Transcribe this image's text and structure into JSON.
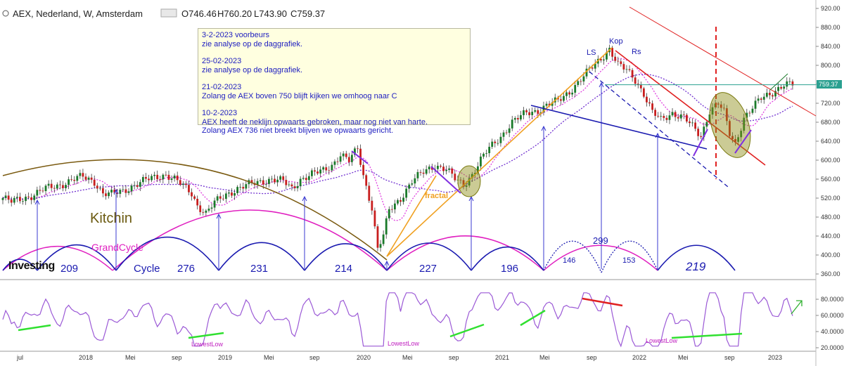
{
  "header": {
    "title": "AEX, Nederland, W, Amsterdam",
    "ohlc": {
      "open": "O746.46",
      "high": "H760.20",
      "low": "L743.90",
      "close": "C759.37"
    }
  },
  "logo": "Investing",
  "notes": [
    "3-2-2023 voorbeurs\nzie analyse op de daggrafiek.",
    "25-02-2023\nzie analyse op de daggrafiek.",
    "21-02-2023\nZolang de AEX boven 750 blijft kijken we omhoog naar C",
    "10-2-2023\nAEX heeft de neklijn opwaarts gebroken, maar nog niet van harte.\nZolang AEX 736 niet breekt  blijven we opwaarts gericht."
  ],
  "chart_data": [
    {
      "type": "candlestick",
      "title": "AEX, Nederland, W, Amsterdam",
      "ylim": [
        350,
        930
      ],
      "yticks": [
        "920.00",
        "880.00",
        "840.00",
        "800.00",
        "760.00",
        "720.00",
        "680.00",
        "640.00",
        "600.00",
        "560.00",
        "520.00",
        "480.00",
        "440.00",
        "400.00",
        "360.00"
      ],
      "last_price_label": "759.37",
      "x_ticks": [
        "jul",
        "2018",
        "Mei",
        "sep",
        "2019",
        "Mei",
        "sep",
        "2020",
        "Mei",
        "sep",
        "2021",
        "Mei",
        "sep",
        "2022",
        "Mei",
        "sep",
        "2023"
      ],
      "close_path": [
        [
          0,
          520
        ],
        [
          3,
          512
        ],
        [
          6,
          518
        ],
        [
          10,
          525
        ],
        [
          15,
          540
        ],
        [
          20,
          548
        ],
        [
          25,
          560
        ],
        [
          28,
          565
        ],
        [
          32,
          555
        ],
        [
          35,
          530
        ],
        [
          38,
          528
        ],
        [
          42,
          535
        ],
        [
          46,
          548
        ],
        [
          50,
          558
        ],
        [
          54,
          565
        ],
        [
          57,
          570
        ],
        [
          60,
          560
        ],
        [
          63,
          545
        ],
        [
          66,
          530
        ],
        [
          68,
          505
        ],
        [
          71,
          488
        ],
        [
          74,
          510
        ],
        [
          78,
          528
        ],
        [
          82,
          540
        ],
        [
          86,
          548
        ],
        [
          90,
          555
        ],
        [
          94,
          560
        ],
        [
          98,
          555
        ],
        [
          101,
          540
        ],
        [
          104,
          560
        ],
        [
          108,
          570
        ],
        [
          112,
          578
        ],
        [
          115,
          590
        ],
        [
          118,
          612
        ],
        [
          121,
          598
        ],
        [
          124,
          625
        ],
        [
          126,
          568
        ],
        [
          129,
          500
        ],
        [
          131,
          412
        ],
        [
          133,
          440
        ],
        [
          135,
          495
        ],
        [
          139,
          520
        ],
        [
          143,
          555
        ],
        [
          147,
          575
        ],
        [
          151,
          590
        ],
        [
          155,
          580
        ],
        [
          158,
          560
        ],
        [
          161,
          548
        ],
        [
          164,
          570
        ],
        [
          167,
          600
        ],
        [
          170,
          625
        ],
        [
          174,
          650
        ],
        [
          178,
          680
        ],
        [
          183,
          700
        ],
        [
          187,
          705
        ],
        [
          190,
          715
        ],
        [
          194,
          725
        ],
        [
          198,
          745
        ],
        [
          202,
          770
        ],
        [
          205,
          790
        ],
        [
          209,
          815
        ],
        [
          212,
          835
        ],
        [
          215,
          800
        ],
        [
          218,
          790
        ],
        [
          221,
          770
        ],
        [
          224,
          740
        ],
        [
          227,
          700
        ],
        [
          230,
          685
        ],
        [
          234,
          700
        ],
        [
          238,
          690
        ],
        [
          241,
          670
        ],
        [
          244,
          650
        ],
        [
          247,
          705
        ],
        [
          250,
          720
        ],
        [
          252,
          700
        ],
        [
          254,
          655
        ],
        [
          256,
          635
        ],
        [
          259,
          690
        ],
        [
          262,
          710
        ],
        [
          265,
          730
        ],
        [
          268,
          740
        ],
        [
          271,
          752
        ],
        [
          273,
          759
        ]
      ],
      "series": [
        {
          "name": "",
          "color": "#e040e0",
          "style": "dotted"
        },
        {
          "name": "",
          "color": "#7030d0",
          "style": "dotted"
        }
      ],
      "annotations": {
        "labels": [
          "Kitchin",
          "GrandCycle",
          "Cycle",
          "LS",
          "Kop",
          "Rs",
          "fractal"
        ],
        "cycle_numbers": [
          "209",
          "276",
          "231",
          "214",
          "227",
          "196",
          "146",
          "299",
          "153",
          "219"
        ],
        "horizontal_level": 759
      }
    },
    {
      "type": "line",
      "title": "",
      "ylim": [
        10,
        95
      ],
      "yticks": [
        "80.0000",
        "60.0000",
        "40.0000",
        "20.0000"
      ],
      "color": "#9b59d6",
      "annotations": [
        "LowestLow",
        "LowestLow",
        "LowestLow"
      ]
    }
  ]
}
